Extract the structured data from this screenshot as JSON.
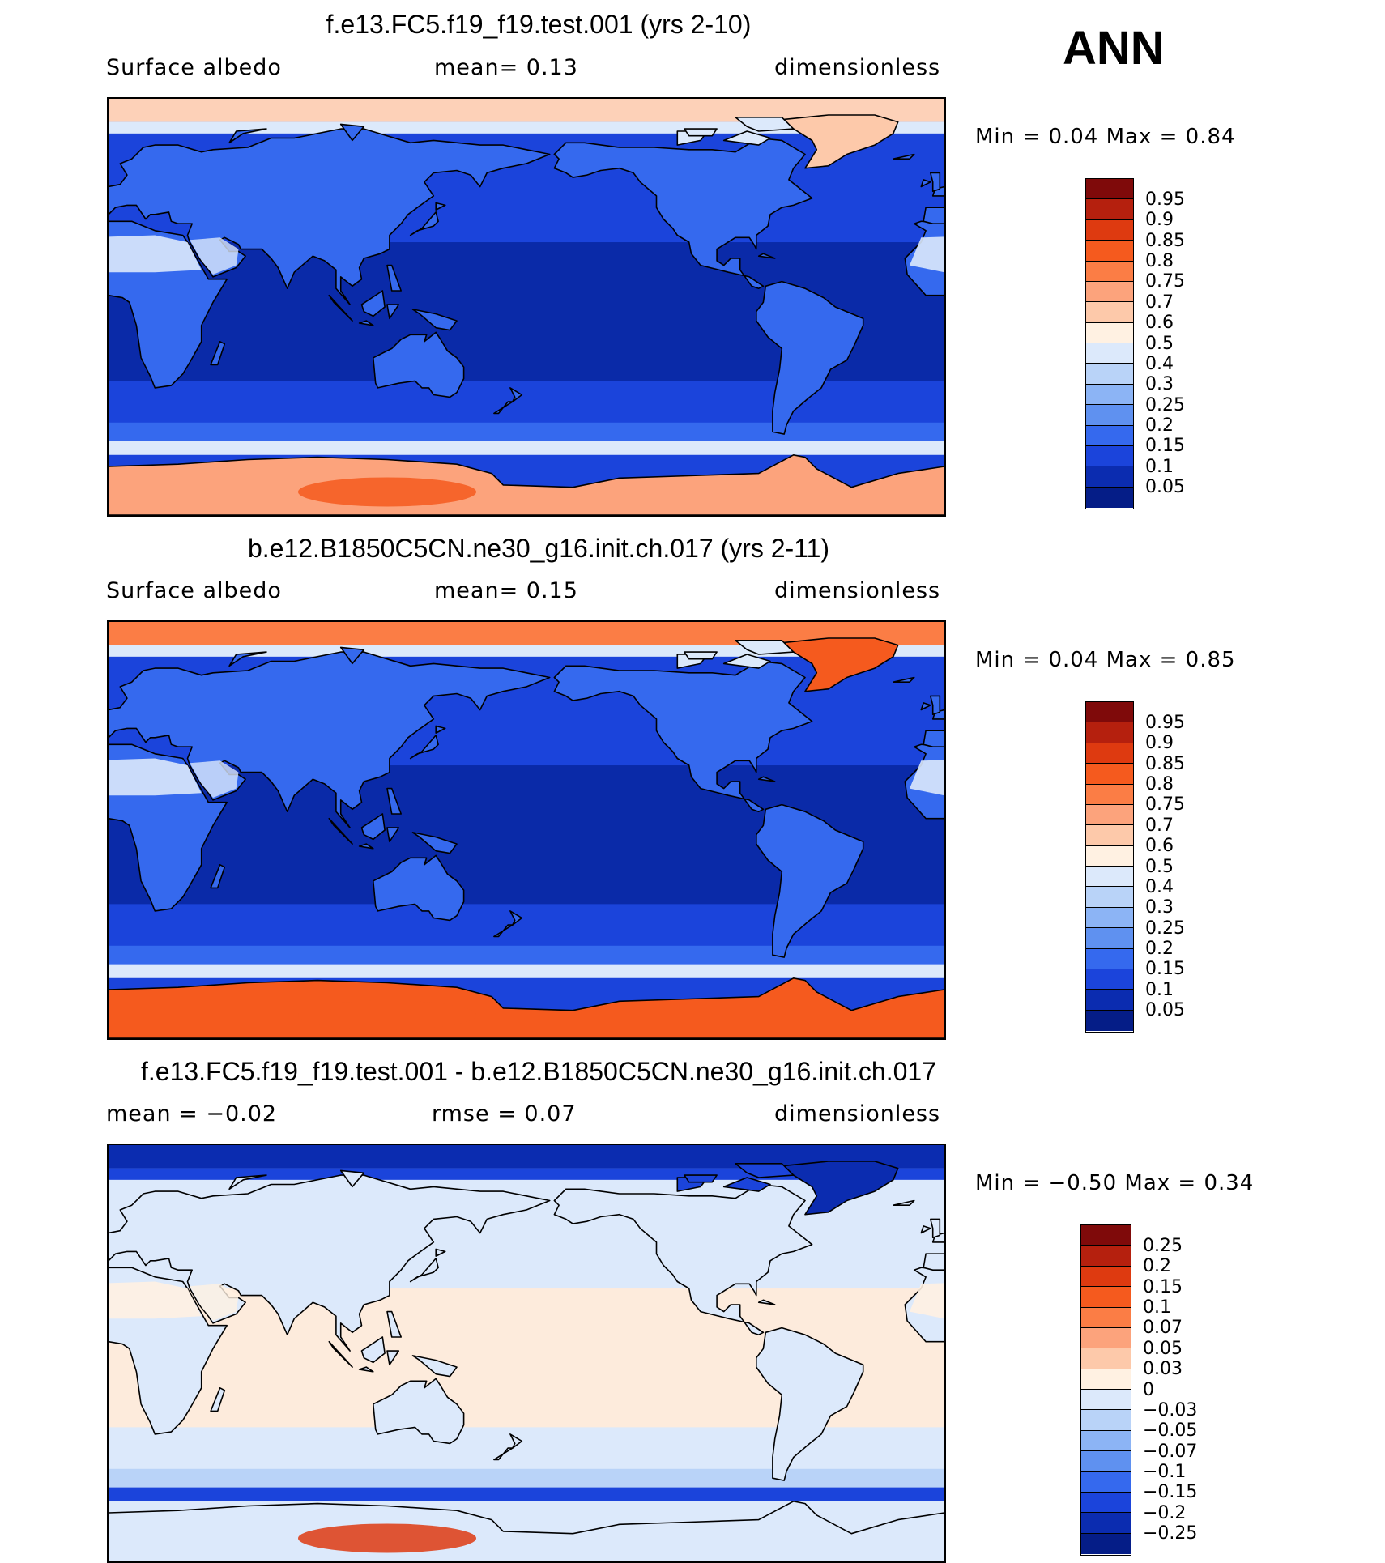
{
  "season": "ANN",
  "panels": [
    {
      "title": "f.e13.FC5.f19_f19.test.001 (yrs 2-10)",
      "left_text": "Surface  albedo",
      "mid_text": "mean=    0.13",
      "right_text": "dimensionless",
      "minmax": "Min  =    0.04  Max  =    0.84",
      "colorbar_labels": [
        "0.95",
        "0.9",
        "0.85",
        "0.8",
        "0.75",
        "0.7",
        "0.6",
        "0.5",
        "0.4",
        "0.3",
        "0.25",
        "0.2",
        "0.15",
        "0.1",
        "0.05"
      ],
      "colors": [
        "#7f0a0a",
        "#b5200e",
        "#de3a10",
        "#f55a1e",
        "#fb7d45",
        "#fca37c",
        "#fdc9aa",
        "#fff1e2",
        "#dce9fb",
        "#b9d3f8",
        "#8cb4f5",
        "#5f91f0",
        "#3569ee",
        "#1b44db",
        "#0b2cb0",
        "#051d87"
      ],
      "fields": {
        "ocean": "#0a2aa8",
        "ocean_mid": "#1b44db",
        "ocean_cold": "#3569ee",
        "sea_ice": "#dce9fb",
        "arctic": "#fdd1b8",
        "antarctic": "#fca37c",
        "antarctic_high": "#f55a1e",
        "land": "#3569ee",
        "desert": "#dce9fb",
        "greenland": "#fdc9aa"
      }
    },
    {
      "title": "b.e12.B1850C5CN.ne30_g16.init.ch.017 (yrs 2-11)",
      "left_text": "Surface  albedo",
      "mid_text": "mean=    0.15",
      "right_text": "dimensionless",
      "minmax": "Min  =    0.04  Max  =    0.85",
      "colorbar_labels": [
        "0.95",
        "0.9",
        "0.85",
        "0.8",
        "0.75",
        "0.7",
        "0.6",
        "0.5",
        "0.4",
        "0.3",
        "0.25",
        "0.2",
        "0.15",
        "0.1",
        "0.05"
      ],
      "colors": [
        "#7f0a0a",
        "#b5200e",
        "#de3a10",
        "#f55a1e",
        "#fb7d45",
        "#fca37c",
        "#fdc9aa",
        "#fff1e2",
        "#dce9fb",
        "#b9d3f8",
        "#8cb4f5",
        "#5f91f0",
        "#3569ee",
        "#1b44db",
        "#0b2cb0",
        "#051d87"
      ],
      "fields": {
        "ocean": "#0a2aa8",
        "ocean_mid": "#1b44db",
        "ocean_cold": "#3569ee",
        "sea_ice": "#dce9fb",
        "arctic": "#fb7d45",
        "antarctic": "#f55a1e",
        "antarctic_high": "#f55a1e",
        "land": "#3569ee",
        "desert": "#dce9fb",
        "greenland": "#f55a1e"
      }
    },
    {
      "title": "f.e13.FC5.f19_f19.test.001 - b.e12.B1850C5CN.ne30_g16.init.ch.017",
      "left_text": "mean  =    −0.02",
      "mid_text": "rmse  =     0.07",
      "right_text": "dimensionless",
      "minmax": "Min  =   −0.50  Max  =     0.34",
      "colorbar_labels": [
        "0.25",
        "0.2",
        "0.15",
        "0.1",
        "0.07",
        "0.05",
        "0.03",
        "0",
        "−0.03",
        "−0.05",
        "−0.07",
        "−0.1",
        "−0.15",
        "−0.2",
        "−0.25"
      ],
      "colors": [
        "#7f0a0a",
        "#b5200e",
        "#de3a10",
        "#f55a1e",
        "#fb7d45",
        "#fca37c",
        "#fdc9aa",
        "#fff1e2",
        "#dce9fb",
        "#b9d3f8",
        "#8cb4f5",
        "#5f91f0",
        "#3569ee",
        "#1b44db",
        "#0b2cb0",
        "#051d87"
      ],
      "fields": {
        "ocean": "#fdebdc",
        "ocean_mid": "#dce9fb",
        "ocean_cold": "#b9d3f8",
        "sea_ice": "#1b44db",
        "arctic": "#0b2cb0",
        "antarctic": "#dce9fb",
        "antarctic_high": "#de3a10",
        "land": "#dce9fb",
        "desert": "#fff1e2",
        "greenland": "#0b2cb0"
      }
    }
  ]
}
